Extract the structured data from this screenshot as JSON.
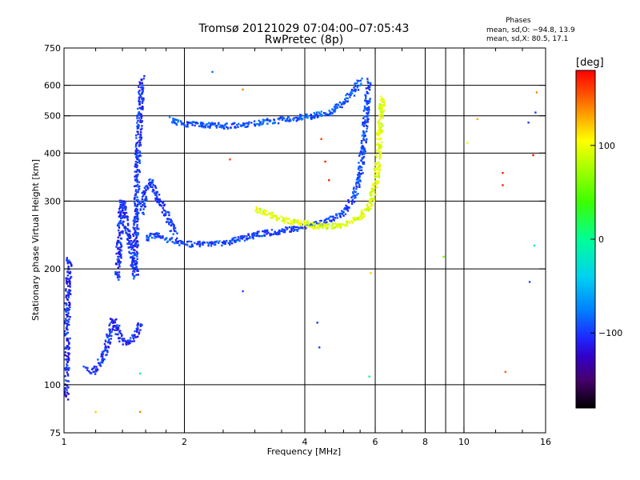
{
  "title": "Tromsø 20121029 07:04:00–07:05:43",
  "subtitle": "RwPretec (8p)",
  "phases": {
    "heading": "Phases",
    "line_o": "mean, sd,O: −94.8, 13.9",
    "line_x": "mean, sd,X:  80.5, 17.1"
  },
  "chart_data": {
    "type": "scatter",
    "xlabel": "Frequency [MHz]",
    "ylabel": "Stationary phase Virtual Height [km]",
    "xscale": "log",
    "yscale": "log",
    "xlim": [
      1,
      16
    ],
    "ylim": [
      75,
      750
    ],
    "xticks": [
      1,
      2,
      4,
      6,
      8,
      10,
      16
    ],
    "xtick_labels": [
      "1",
      "2",
      "4",
      "6",
      "8",
      "10",
      "16"
    ],
    "xgrid": [
      2,
      4,
      6,
      8,
      9,
      10
    ],
    "xminor": [
      1.2,
      1.4,
      1.6,
      1.8,
      2.5,
      3,
      3.5,
      4.5,
      5,
      5.5,
      7,
      12,
      14
    ],
    "yticks": [
      75,
      100,
      200,
      300,
      400,
      500,
      600,
      750
    ],
    "ytick_labels": [
      "75",
      "100",
      "200",
      "300",
      "400",
      "500",
      "600",
      "750"
    ],
    "ygrid": [
      100,
      200,
      300,
      400,
      500,
      600
    ],
    "grid": true,
    "colorbar": {
      "label": "[deg]",
      "range": [
        -180,
        180
      ],
      "ticks": [
        100,
        0,
        -100
      ],
      "tick_labels": [
        "100",
        "0",
        "−100"
      ],
      "colors": [
        "#000000",
        "#3a0050",
        "#4a00a0",
        "#2020ff",
        "#0080ff",
        "#00d0ff",
        "#00ff90",
        "#30ff00",
        "#b0ff00",
        "#ffff00",
        "#ffb000",
        "#ff5000",
        "#ff0000"
      ]
    },
    "series": [
      {
        "traces": [
          {
            "phase": -104,
            "points": [
              [
                1.0,
                95
              ],
              [
                1.01,
                93
              ],
              [
                1.03,
                215
              ]
            ]
          },
          {
            "phase": -102,
            "points": [
              [
                1.13,
                110
              ],
              [
                1.18,
                108
              ],
              [
                1.22,
                112
              ],
              [
                1.25,
                118
              ],
              [
                1.28,
                125
              ],
              [
                1.3,
                135
              ],
              [
                1.33,
                148
              ],
              [
                1.36,
                140
              ],
              [
                1.38,
                132
              ],
              [
                1.42,
                128
              ],
              [
                1.47,
                130
              ],
              [
                1.52,
                135
              ],
              [
                1.55,
                145
              ]
            ]
          },
          {
            "phase": -103,
            "points": [
              [
                1.36,
                190
              ],
              [
                1.37,
                215
              ],
              [
                1.38,
                245
              ],
              [
                1.39,
                280
              ],
              [
                1.4,
                300
              ],
              [
                1.42,
                270
              ],
              [
                1.45,
                240
              ],
              [
                1.48,
                215
              ],
              [
                1.5,
                200
              ],
              [
                1.52,
                195
              ]
            ]
          },
          {
            "phase": -100,
            "points": [
              [
                1.5,
                190
              ],
              [
                1.51,
                240
              ],
              [
                1.52,
                300
              ],
              [
                1.53,
                380
              ],
              [
                1.54,
                450
              ],
              [
                1.55,
                520
              ],
              [
                1.56,
                580
              ],
              [
                1.57,
                630
              ]
            ]
          },
          {
            "phase": -98,
            "points": [
              [
                1.56,
                280
              ],
              [
                1.6,
                320
              ],
              [
                1.65,
                340
              ],
              [
                1.7,
                310
              ],
              [
                1.8,
                280
              ],
              [
                1.85,
                260
              ],
              [
                1.9,
                245
              ]
            ]
          },
          {
            "phase": -95,
            "points": [
              [
                1.6,
                240
              ],
              [
                1.7,
                245
              ],
              [
                1.8,
                240
              ],
              [
                2.0,
                232
              ],
              [
                2.2,
                232
              ],
              [
                2.5,
                233
              ],
              [
                2.8,
                240
              ],
              [
                3.0,
                245
              ],
              [
                3.2,
                248
              ],
              [
                3.5,
                250
              ],
              [
                3.8,
                255
              ],
              [
                4.2,
                260
              ],
              [
                4.6,
                268
              ],
              [
                5.0,
                280
              ],
              [
                5.3,
                305
              ],
              [
                5.5,
                350
              ],
              [
                5.6,
                420
              ],
              [
                5.7,
                500
              ],
              [
                5.75,
                560
              ],
              [
                5.8,
                620
              ]
            ]
          },
          {
            "phase": -90,
            "points": [
              [
                1.85,
                490
              ],
              [
                1.95,
                480
              ],
              [
                2.05,
                475
              ],
              [
                2.3,
                472
              ],
              [
                2.6,
                470
              ],
              [
                2.9,
                475
              ],
              [
                3.2,
                482
              ],
              [
                3.6,
                490
              ],
              [
                4.1,
                498
              ],
              [
                4.6,
                510
              ],
              [
                5.0,
                540
              ],
              [
                5.3,
                580
              ],
              [
                5.5,
                620
              ]
            ]
          },
          {
            "phase": 95,
            "points": [
              [
                3.0,
                285
              ],
              [
                3.2,
                280
              ],
              [
                3.4,
                272
              ],
              [
                3.7,
                266
              ],
              [
                4.0,
                262
              ],
              [
                4.3,
                258
              ],
              [
                4.7,
                258
              ],
              [
                5.1,
                262
              ],
              [
                5.5,
                272
              ],
              [
                5.8,
                290
              ],
              [
                6.0,
                330
              ],
              [
                6.1,
                380
              ],
              [
                6.15,
                440
              ],
              [
                6.2,
                500
              ],
              [
                6.25,
                560
              ]
            ]
          }
        ]
      }
    ],
    "scattered_points": [
      {
        "x": 1.2,
        "y": 85,
        "phase": 120
      },
      {
        "x": 1.55,
        "y": 85,
        "phase": 140
      },
      {
        "x": 1.55,
        "y": 107,
        "phase": -10
      },
      {
        "x": 2.35,
        "y": 650,
        "phase": -80
      },
      {
        "x": 2.8,
        "y": 585,
        "phase": 140
      },
      {
        "x": 2.6,
        "y": 385,
        "phase": 160
      },
      {
        "x": 2.8,
        "y": 175,
        "phase": -95
      },
      {
        "x": 4.3,
        "y": 145,
        "phase": -100
      },
      {
        "x": 4.35,
        "y": 125,
        "phase": -95
      },
      {
        "x": 4.4,
        "y": 435,
        "phase": 160
      },
      {
        "x": 4.5,
        "y": 380,
        "phase": 170
      },
      {
        "x": 4.6,
        "y": 340,
        "phase": 170
      },
      {
        "x": 5.8,
        "y": 105,
        "phase": -10
      },
      {
        "x": 5.85,
        "y": 195,
        "phase": 120
      },
      {
        "x": 8.9,
        "y": 215,
        "phase": 60
      },
      {
        "x": 10.2,
        "y": 425,
        "phase": 100
      },
      {
        "x": 10.8,
        "y": 490,
        "phase": 130
      },
      {
        "x": 12.5,
        "y": 355,
        "phase": 170
      },
      {
        "x": 12.5,
        "y": 330,
        "phase": 170
      },
      {
        "x": 12.7,
        "y": 108,
        "phase": 150
      },
      {
        "x": 14.5,
        "y": 480,
        "phase": -100
      },
      {
        "x": 14.6,
        "y": 185,
        "phase": -95
      },
      {
        "x": 14.9,
        "y": 395,
        "phase": 175
      },
      {
        "x": 15.0,
        "y": 230,
        "phase": -20
      },
      {
        "x": 15.1,
        "y": 510,
        "phase": -100
      },
      {
        "x": 15.2,
        "y": 575,
        "phase": 140
      }
    ]
  }
}
